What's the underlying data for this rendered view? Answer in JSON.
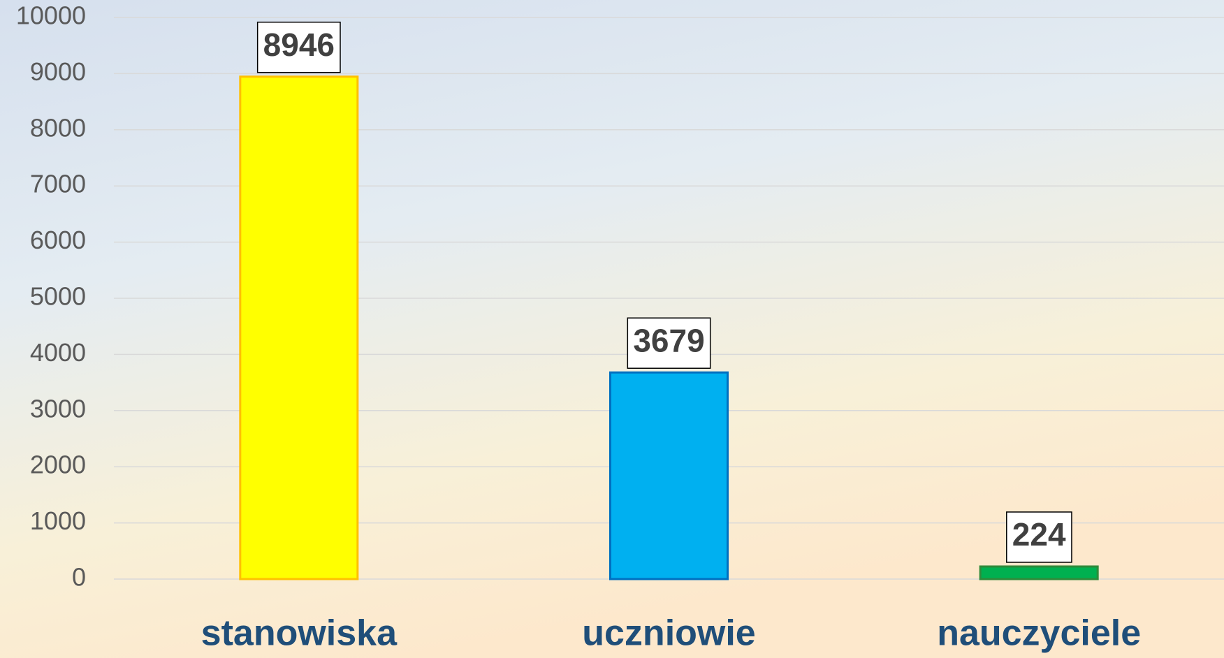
{
  "chart_data": {
    "type": "bar",
    "categories": [
      "stanowiska",
      "uczniowie",
      "nauczyciele"
    ],
    "values": [
      8946,
      3679,
      224
    ],
    "colors": [
      "#ffff00",
      "#00b0f0",
      "#00b050"
    ],
    "border_colors": [
      "#ffc000",
      "#0070c0",
      "#2e8b3a"
    ],
    "ylim": [
      0,
      10000
    ],
    "yticks": [
      0,
      1000,
      2000,
      3000,
      4000,
      5000,
      6000,
      7000,
      8000,
      9000,
      10000
    ],
    "grid": true
  }
}
